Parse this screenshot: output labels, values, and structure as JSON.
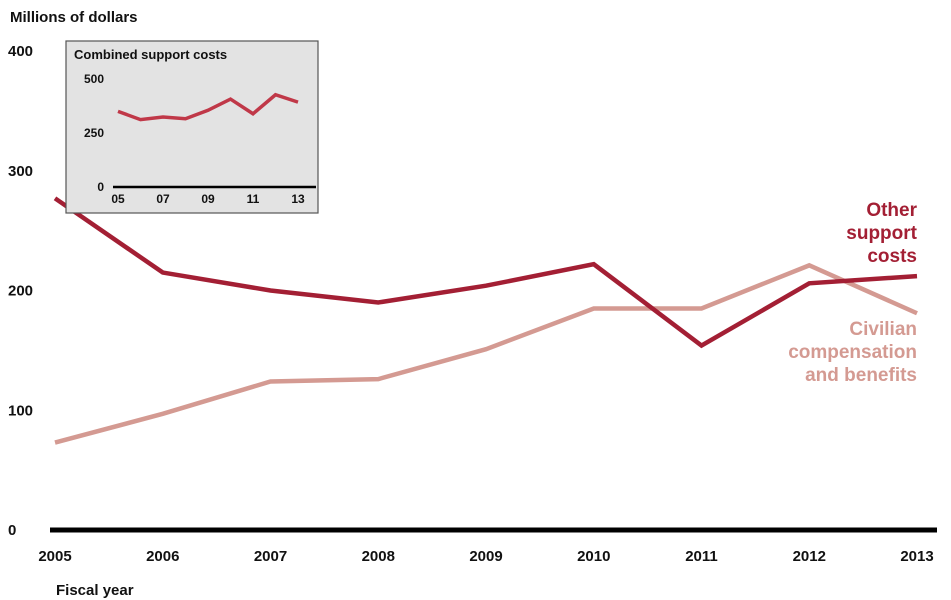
{
  "chart_data": [
    {
      "type": "line",
      "title": "",
      "ylabel": "Millions of dollars",
      "xlabel": "Fiscal year",
      "x": [
        "2005",
        "2006",
        "2007",
        "2008",
        "2009",
        "2010",
        "2011",
        "2012",
        "2013"
      ],
      "ylim": [
        0,
        400
      ],
      "yticks": [
        "0",
        "100",
        "200",
        "300",
        "400"
      ],
      "grid": false,
      "legend": "direct labels at right end of lines",
      "series": [
        {
          "name": "Other support costs",
          "label_lines": [
            "Other",
            "support",
            "costs"
          ],
          "color": "#a31f34",
          "values": [
            277,
            215,
            200,
            190,
            204,
            222,
            154,
            206,
            212
          ]
        },
        {
          "name": "Civilian compensation and benefits",
          "label_lines": [
            "Civilian",
            "compensation",
            "and benefits"
          ],
          "color": "#d49a92",
          "values": [
            73,
            97,
            124,
            126,
            151,
            185,
            185,
            221,
            181
          ]
        }
      ]
    },
    {
      "type": "line",
      "title": "Combined support costs",
      "x": [
        "05",
        "06",
        "07",
        "08",
        "09",
        "10",
        "11",
        "12",
        "13"
      ],
      "xticks": [
        "05",
        "07",
        "09",
        "11",
        "13"
      ],
      "ylim": [
        0,
        500
      ],
      "yticks": [
        "0",
        "250",
        "500"
      ],
      "grid": false,
      "series": [
        {
          "name": "",
          "color": "#c03848",
          "values": [
            350,
            312,
            324,
            316,
            355,
            407,
            339,
            427,
            393
          ]
        }
      ]
    }
  ]
}
